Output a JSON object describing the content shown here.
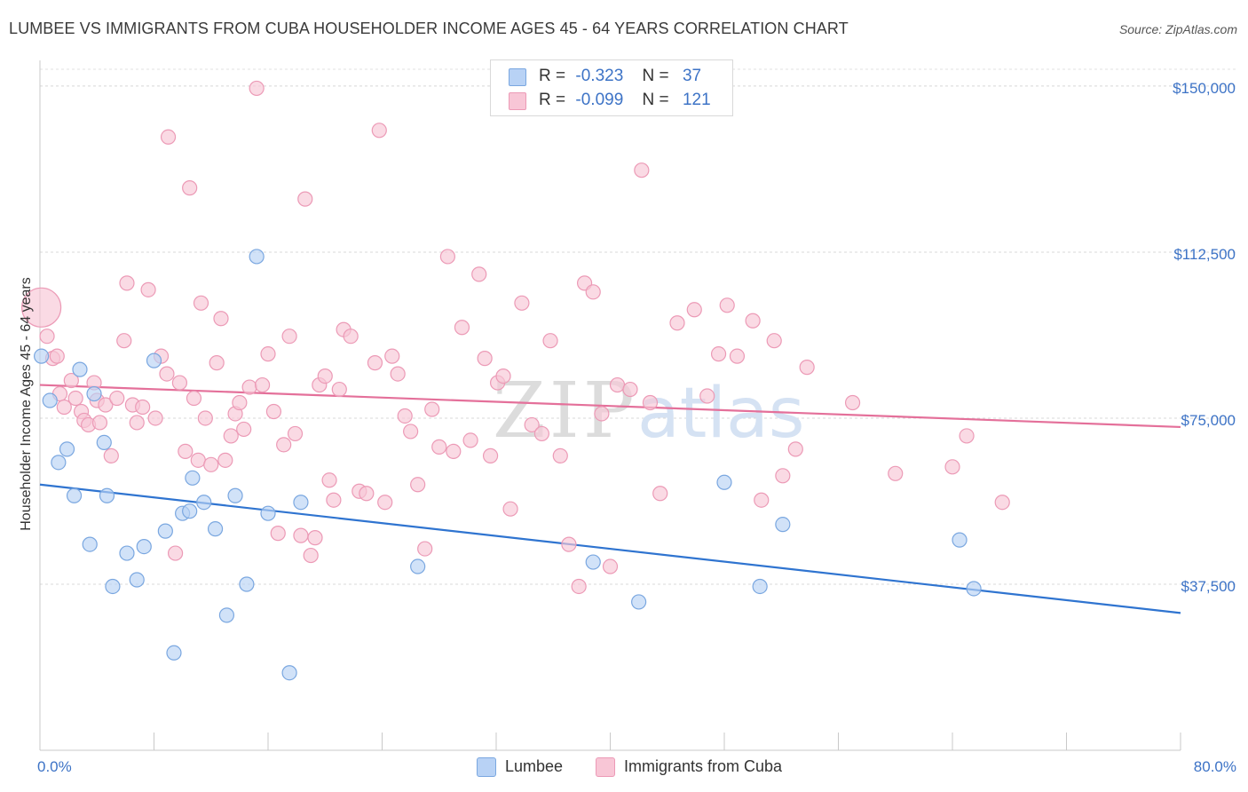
{
  "title": "LUMBEE VS IMMIGRANTS FROM CUBA HOUSEHOLDER INCOME AGES 45 - 64 YEARS CORRELATION CHART",
  "source": "Source: ZipAtlas.com",
  "watermark": {
    "zip": "ZIP",
    "atlas": "atlas"
  },
  "legend": {
    "r_label": "R =",
    "n_label": "N =",
    "rows": [
      {
        "r": "-0.323",
        "n": "37"
      },
      {
        "r": "-0.099",
        "n": "121"
      }
    ]
  },
  "colors": {
    "lumbee_fill": "#b8d2f5",
    "lumbee_stroke": "#7aa7e0",
    "lumbee_line": "#2f74d0",
    "cuba_fill": "#f8c6d6",
    "cuba_stroke": "#ec9ab6",
    "cuba_line": "#e4709a",
    "axis_text": "#3d73c6"
  },
  "chart_data": {
    "type": "scatter",
    "title": "LUMBEE VS IMMIGRANTS FROM CUBA HOUSEHOLDER INCOME AGES 45 - 64 YEARS CORRELATION CHART",
    "xlabel": "",
    "ylabel": "Householder Income Ages 45 - 64 years",
    "xlim": [
      0,
      80
    ],
    "ylim": [
      0,
      155000
    ],
    "x_tick_labels": {
      "min": "0.0%",
      "max": "80.0%"
    },
    "y_ticks": [
      {
        "value": 37500,
        "label": "$37,500"
      },
      {
        "value": 75000,
        "label": "$75,000"
      },
      {
        "value": 112500,
        "label": "$112,500"
      },
      {
        "value": 150000,
        "label": "$150,000"
      }
    ],
    "series": [
      {
        "name": "Lumbee",
        "r": -0.323,
        "n": 37,
        "trend": {
          "x": [
            0,
            80
          ],
          "y": [
            60000,
            31000
          ]
        },
        "points": [
          [
            0.1,
            89000
          ],
          [
            0.7,
            79000
          ],
          [
            1.3,
            65000
          ],
          [
            1.9,
            68000
          ],
          [
            2.4,
            57500
          ],
          [
            2.8,
            86000
          ],
          [
            3.5,
            46500
          ],
          [
            3.8,
            80500
          ],
          [
            4.5,
            69500
          ],
          [
            4.7,
            57500
          ],
          [
            5.1,
            37000
          ],
          [
            6.1,
            44500
          ],
          [
            6.8,
            38500
          ],
          [
            7.3,
            46000
          ],
          [
            8.0,
            88000
          ],
          [
            8.8,
            49500
          ],
          [
            9.4,
            22000
          ],
          [
            10.0,
            53500
          ],
          [
            10.5,
            54000
          ],
          [
            10.7,
            61500
          ],
          [
            11.5,
            56000
          ],
          [
            12.3,
            50000
          ],
          [
            13.1,
            30500
          ],
          [
            13.7,
            57500
          ],
          [
            14.5,
            37500
          ],
          [
            15.2,
            111500
          ],
          [
            16.0,
            53500
          ],
          [
            17.5,
            17500
          ],
          [
            18.3,
            56000
          ],
          [
            26.5,
            41500
          ],
          [
            38.8,
            42500
          ],
          [
            42.0,
            33500
          ],
          [
            48.0,
            60500
          ],
          [
            50.5,
            37000
          ],
          [
            52.1,
            51000
          ],
          [
            64.5,
            47500
          ],
          [
            65.5,
            36500
          ]
        ]
      },
      {
        "name": "Immigrants from Cuba",
        "r": -0.099,
        "n": 121,
        "trend": {
          "x": [
            0,
            80
          ],
          "y": [
            82500,
            73000
          ]
        },
        "points": [
          [
            0.1,
            100000
          ],
          [
            0.5,
            93500
          ],
          [
            0.9,
            88500
          ],
          [
            1.2,
            89000
          ],
          [
            1.4,
            80500
          ],
          [
            1.7,
            77500
          ],
          [
            2.2,
            83500
          ],
          [
            2.5,
            79500
          ],
          [
            2.9,
            76500
          ],
          [
            3.1,
            74500
          ],
          [
            3.4,
            73500
          ],
          [
            3.8,
            83000
          ],
          [
            4.0,
            79000
          ],
          [
            4.2,
            74000
          ],
          [
            4.6,
            78000
          ],
          [
            5.0,
            66500
          ],
          [
            5.4,
            79500
          ],
          [
            5.9,
            92500
          ],
          [
            6.1,
            105500
          ],
          [
            6.5,
            78000
          ],
          [
            6.8,
            74000
          ],
          [
            7.2,
            77500
          ],
          [
            7.6,
            104000
          ],
          [
            8.1,
            75000
          ],
          [
            8.5,
            89000
          ],
          [
            8.9,
            85000
          ],
          [
            9.0,
            138500
          ],
          [
            9.5,
            44500
          ],
          [
            9.8,
            83000
          ],
          [
            10.2,
            67500
          ],
          [
            10.5,
            127000
          ],
          [
            10.8,
            79500
          ],
          [
            11.1,
            65500
          ],
          [
            11.3,
            101000
          ],
          [
            11.6,
            75000
          ],
          [
            12.0,
            64500
          ],
          [
            12.4,
            87500
          ],
          [
            12.7,
            97500
          ],
          [
            13.0,
            65500
          ],
          [
            13.4,
            71000
          ],
          [
            13.7,
            76000
          ],
          [
            14.0,
            78500
          ],
          [
            14.3,
            72500
          ],
          [
            14.7,
            82000
          ],
          [
            15.2,
            149500
          ],
          [
            15.6,
            82500
          ],
          [
            16.0,
            89500
          ],
          [
            16.4,
            76500
          ],
          [
            16.7,
            49000
          ],
          [
            17.1,
            69000
          ],
          [
            17.5,
            93500
          ],
          [
            17.9,
            71500
          ],
          [
            18.3,
            48500
          ],
          [
            18.6,
            124500
          ],
          [
            19.0,
            44000
          ],
          [
            19.3,
            48000
          ],
          [
            19.6,
            82500
          ],
          [
            20.0,
            84500
          ],
          [
            20.3,
            61000
          ],
          [
            20.6,
            56500
          ],
          [
            21.0,
            81500
          ],
          [
            21.3,
            95000
          ],
          [
            21.8,
            93500
          ],
          [
            22.4,
            58500
          ],
          [
            22.9,
            58000
          ],
          [
            23.5,
            87500
          ],
          [
            23.8,
            140000
          ],
          [
            24.2,
            56000
          ],
          [
            24.7,
            89000
          ],
          [
            25.1,
            85000
          ],
          [
            25.6,
            75500
          ],
          [
            26.0,
            72000
          ],
          [
            26.5,
            60000
          ],
          [
            27.0,
            45500
          ],
          [
            27.5,
            77000
          ],
          [
            28.0,
            68500
          ],
          [
            28.6,
            111500
          ],
          [
            29.0,
            67500
          ],
          [
            29.6,
            95500
          ],
          [
            30.2,
            70000
          ],
          [
            30.8,
            107500
          ],
          [
            31.2,
            88500
          ],
          [
            31.6,
            66500
          ],
          [
            32.1,
            83000
          ],
          [
            32.5,
            84500
          ],
          [
            33.0,
            54500
          ],
          [
            33.8,
            101000
          ],
          [
            34.5,
            73500
          ],
          [
            35.2,
            71500
          ],
          [
            35.8,
            92500
          ],
          [
            36.5,
            66500
          ],
          [
            37.1,
            46500
          ],
          [
            37.8,
            37000
          ],
          [
            38.2,
            105500
          ],
          [
            38.8,
            103500
          ],
          [
            39.4,
            76000
          ],
          [
            40.0,
            41500
          ],
          [
            40.5,
            82500
          ],
          [
            41.4,
            81500
          ],
          [
            42.2,
            131000
          ],
          [
            42.8,
            78500
          ],
          [
            43.5,
            58000
          ],
          [
            44.7,
            96500
          ],
          [
            45.9,
            99500
          ],
          [
            46.8,
            80000
          ],
          [
            47.6,
            89500
          ],
          [
            48.2,
            100500
          ],
          [
            48.9,
            89000
          ],
          [
            50.0,
            97000
          ],
          [
            50.6,
            56500
          ],
          [
            51.5,
            92500
          ],
          [
            52.1,
            62000
          ],
          [
            53.0,
            68000
          ],
          [
            53.8,
            86500
          ],
          [
            57.0,
            78500
          ],
          [
            60.0,
            62500
          ],
          [
            64.0,
            64000
          ],
          [
            65.0,
            71000
          ],
          [
            67.5,
            56000
          ]
        ]
      }
    ]
  },
  "bottom_legend": [
    {
      "label": "Lumbee"
    },
    {
      "label": "Immigrants from Cuba"
    }
  ]
}
